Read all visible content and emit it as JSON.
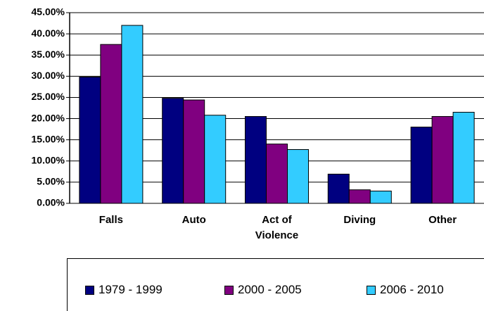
{
  "chart_data": {
    "type": "bar",
    "categories": [
      "Falls",
      "Auto",
      "Act of Violence",
      "Diving",
      "Other"
    ],
    "series": [
      {
        "name": "1979 - 1999",
        "color": "#000080",
        "values": [
          29.8,
          24.8,
          20.5,
          6.9,
          18.0
        ]
      },
      {
        "name": "2000 - 2005",
        "color": "#800080",
        "values": [
          37.5,
          24.4,
          14.0,
          3.2,
          20.5
        ]
      },
      {
        "name": "2006 - 2010",
        "color": "#33ccff",
        "values": [
          42.0,
          20.8,
          12.7,
          2.9,
          21.5
        ]
      }
    ],
    "ylim": [
      0,
      45
    ],
    "yticks": [
      {
        "value": 0,
        "label": "0.00%"
      },
      {
        "value": 5,
        "label": "5.00%"
      },
      {
        "value": 10,
        "label": "10.00%"
      },
      {
        "value": 15,
        "label": "15.00%"
      },
      {
        "value": 20,
        "label": "20.00%"
      },
      {
        "value": 25,
        "label": "25.00%"
      },
      {
        "value": 30,
        "label": "30.00%"
      },
      {
        "value": 35,
        "label": "35.00%"
      },
      {
        "value": 40,
        "label": "40.00%"
      },
      {
        "value": 45,
        "label": "45.00%"
      }
    ],
    "grid": true
  }
}
